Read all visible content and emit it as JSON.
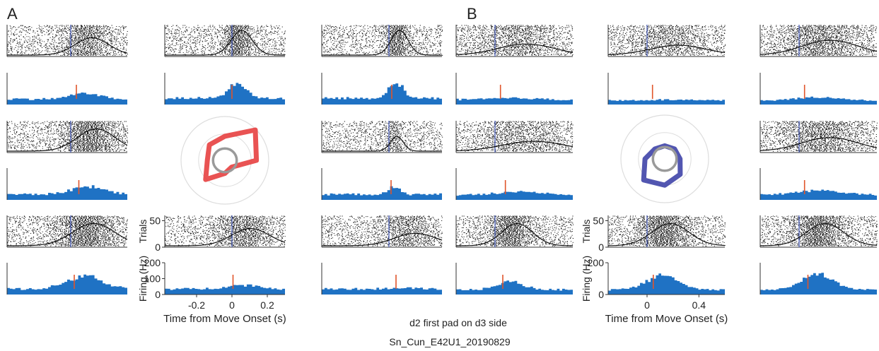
{
  "panel_labels": {
    "a": "A",
    "b": "B"
  },
  "caption": {
    "line1": "d2 first pad on d3 side",
    "line2": "Sn_Cun_E42U1_20190829"
  },
  "colors": {
    "histogram": "#1f72c4",
    "raster": "#111111",
    "onset": "#4a5fb8",
    "marker": "#e0552b",
    "polar_a": "#e63b3b",
    "polar_b": "#3a3fa6",
    "ring": "#9a9a9a",
    "grid": "#dddddd"
  },
  "axis_text": {
    "a": {
      "xlabel": "Time from Move Onset (s)",
      "raster_ylabel": "Trials",
      "hist_ylabel": "Firing (Hz)",
      "xticks": [
        "-0.2",
        "0",
        "0.2"
      ],
      "raster_yticks": [
        "0",
        "50"
      ],
      "hist_yticks": [
        "0",
        "100",
        "200"
      ]
    },
    "b": {
      "xlabel": "Time from Move Onset (s)",
      "raster_ylabel": "Trials",
      "hist_ylabel": "Firing (Hz)",
      "xticks": [
        "0",
        "0.4"
      ],
      "raster_yticks": [
        "0",
        "50"
      ],
      "hist_yticks": [
        "0",
        "200"
      ]
    }
  },
  "chart_data": [
    {
      "type": "histogram",
      "panel": "A",
      "x_unit": "s",
      "xlim": [
        -0.38,
        0.3
      ],
      "ylim": [
        0,
        200
      ],
      "raster_trials": 60,
      "polar": {
        "type": "polar",
        "directions_deg": [
          0,
          45,
          90,
          135,
          180,
          225,
          270,
          315
        ],
        "values": [
          0.72,
          0.98,
          0.55,
          0.5,
          0.4,
          0.62,
          0.3,
          0.22
        ],
        "baseline": 0.3
      },
      "cells": [
        {
          "id": "A-1",
          "onset": -0.02,
          "peak": 0.06,
          "width": 0.08,
          "amp": 0.7,
          "rate": [
            35,
            70
          ]
        },
        {
          "id": "A-2",
          "onset": 0.0,
          "peak": 0.03,
          "width": 0.05,
          "amp": 1.0,
          "rate": [
            40,
            135
          ]
        },
        {
          "id": "A-3",
          "onset": 0.0,
          "peak": 0.04,
          "width": 0.04,
          "amp": 1.0,
          "rate": [
            40,
            140
          ]
        },
        {
          "id": "A-4",
          "onset": -0.02,
          "peak": 0.08,
          "width": 0.09,
          "amp": 0.9,
          "rate": [
            35,
            85
          ]
        },
        {
          "id": "A-5",
          "onset": 0.0,
          "peak": 0.03,
          "width": 0.03,
          "amp": 0.6,
          "rate": [
            35,
            80
          ]
        },
        {
          "id": "A-6",
          "onset": -0.02,
          "peak": 0.06,
          "width": 0.1,
          "amp": 0.9,
          "rate": [
            35,
            115
          ]
        },
        {
          "id": "A-7",
          "onset": 0.0,
          "peak": 0.06,
          "width": 0.09,
          "amp": 0.7,
          "rate": [
            35,
            60
          ]
        },
        {
          "id": "A-8",
          "onset": 0.0,
          "peak": 0.1,
          "width": 0.1,
          "amp": 0.5,
          "rate": [
            35,
            40
          ]
        }
      ]
    },
    {
      "type": "histogram",
      "panel": "B",
      "x_unit": "s",
      "xlim": [
        -0.3,
        0.6
      ],
      "ylim": [
        0,
        200
      ],
      "raster_trials": 60,
      "polar": {
        "type": "polar",
        "directions_deg": [
          0,
          45,
          90,
          135,
          180,
          225,
          270,
          315
        ],
        "values": [
          0.35,
          0.32,
          0.3,
          0.32,
          0.45,
          0.68,
          0.6,
          0.5
        ],
        "baseline": 0.3
      },
      "cells": [
        {
          "id": "B-1",
          "onset": 0.0,
          "peak": 0.15,
          "width": 0.18,
          "amp": 0.45,
          "rate": [
            30,
            40
          ]
        },
        {
          "id": "B-2",
          "onset": 0.0,
          "peak": 0.15,
          "width": 0.18,
          "amp": 0.4,
          "rate": [
            25,
            30
          ]
        },
        {
          "id": "B-3",
          "onset": 0.0,
          "peak": 0.15,
          "width": 0.18,
          "amp": 0.6,
          "rate": [
            25,
            45
          ]
        },
        {
          "id": "B-4",
          "onset": 0.0,
          "peak": 0.2,
          "width": 0.2,
          "amp": 0.4,
          "rate": [
            30,
            50
          ]
        },
        {
          "id": "B-5",
          "onset": 0.0,
          "peak": 0.15,
          "width": 0.18,
          "amp": 0.55,
          "rate": [
            30,
            60
          ]
        },
        {
          "id": "B-6",
          "onset": 0.0,
          "peak": 0.12,
          "width": 0.1,
          "amp": 0.9,
          "rate": [
            30,
            80
          ]
        },
        {
          "id": "B-7",
          "onset": 0.0,
          "peak": 0.12,
          "width": 0.12,
          "amp": 0.9,
          "rate": [
            30,
            120
          ]
        },
        {
          "id": "B-8",
          "onset": 0.0,
          "peak": 0.14,
          "width": 0.12,
          "amp": 0.9,
          "rate": [
            30,
            130
          ]
        }
      ]
    }
  ]
}
